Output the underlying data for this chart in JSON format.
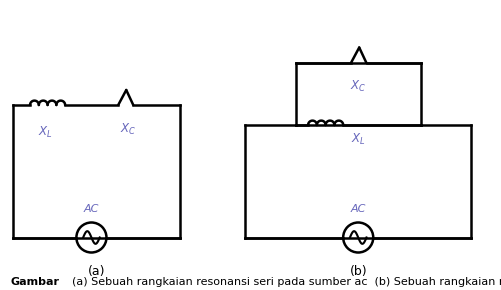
{
  "bg_color": "#ffffff",
  "line_color": "#000000",
  "label_color": "#6666bb",
  "text_color": "#000000",
  "fig_width": 5.01,
  "fig_height": 2.9,
  "dpi": 100,
  "caption_gambar": "Gambar",
  "caption_body": "    (a) Sebuah rangkaian resonansi seri pada sumber ac  (b) Sebuah rangkaian resonansi pararel pada sumber ac",
  "label_a": "(a)",
  "label_b": "(b)"
}
